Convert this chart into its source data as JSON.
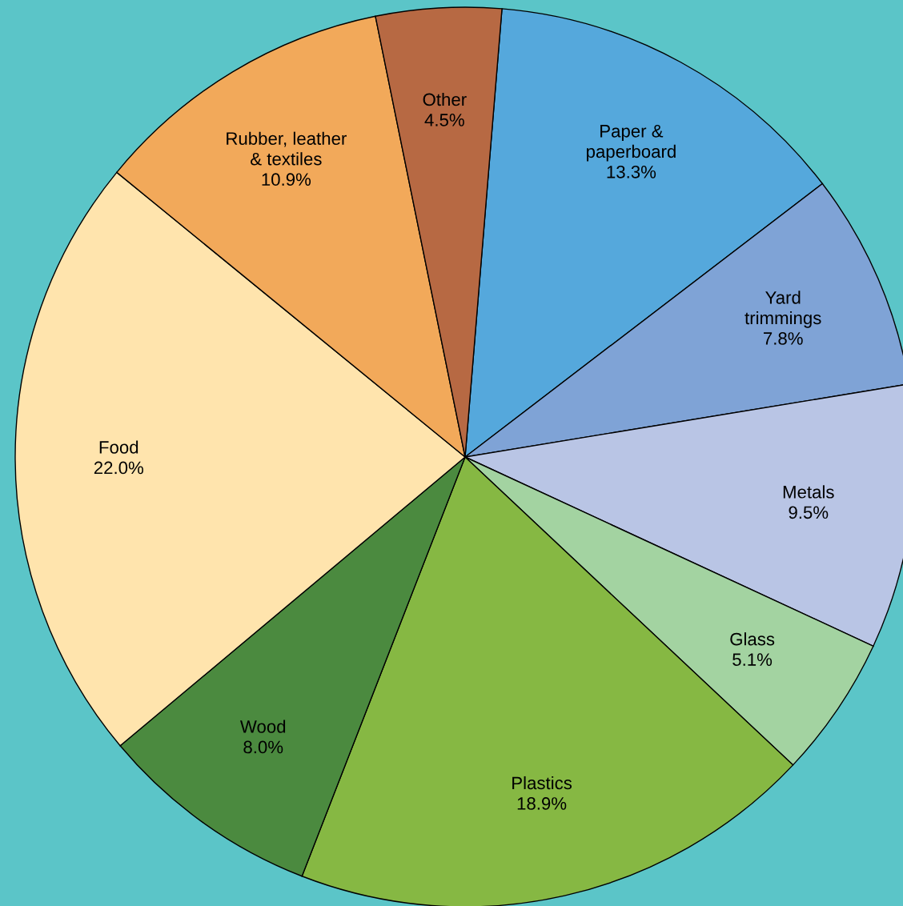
{
  "chart_data": {
    "type": "pie",
    "categories": [
      "Paper &\npaperboard",
      "Yard\ntrimmings",
      "Metals",
      "Glass",
      "Plastics",
      "Wood",
      "Food",
      "Rubber, leather\n& textiles",
      "Other"
    ],
    "values": [
      13.3,
      7.8,
      9.5,
      5.1,
      18.9,
      8.0,
      22.0,
      10.9,
      4.5
    ],
    "value_labels": [
      "13.3%",
      "7.8%",
      "9.5%",
      "5.1%",
      "18.9%",
      "8.0%",
      "22.0%",
      "10.9%",
      "4.5%"
    ],
    "colors": [
      "#55a8dc",
      "#7fa3d6",
      "#b9c5e5",
      "#a3d3a1",
      "#86b843",
      "#4b8a3f",
      "#ffe4ad",
      "#f2a95a",
      "#b76943"
    ],
    "legend": false
  }
}
